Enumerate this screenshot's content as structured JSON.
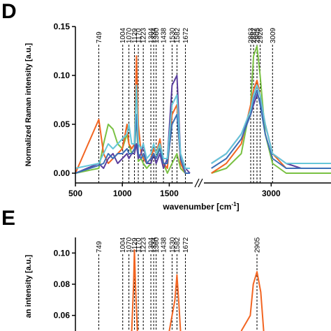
{
  "chart_data": [
    {
      "type": "line",
      "panel": "D",
      "ylabel": "Normalized Raman intensity [a.u.]",
      "xlabel": "wavenumber [cm",
      "xlabel_sup": "-1",
      "xlabel_close": "]",
      "ylim": [
        -0.01,
        0.15
      ],
      "yticks": [
        "0.00",
        "0.05",
        "0.10",
        "0.15"
      ],
      "ytick_values": [
        0.0,
        0.05,
        0.1,
        0.15
      ],
      "xaxis_broken": true,
      "xlim_left": [
        500,
        1750
      ],
      "xlim_right": [
        2550,
        3400
      ],
      "xticks": [
        "500",
        "1000",
        "1500",
        "3000"
      ],
      "xtick_values": [
        500,
        1000,
        1500,
        3000
      ],
      "peak_labels": [
        "749",
        "1004",
        "1070",
        "1129",
        "1170",
        "1223",
        "1304",
        "1334",
        "1360",
        "1438",
        "1530",
        "1582",
        "1672",
        "2863",
        "2882",
        "2905",
        "2926",
        "3009"
      ],
      "peak_positions": [
        749,
        1004,
        1070,
        1129,
        1170,
        1223,
        1304,
        1334,
        1360,
        1438,
        1530,
        1582,
        1672,
        2863,
        2882,
        2905,
        2926,
        3009
      ],
      "series_colors": [
        "#7ac143",
        "#f26522",
        "#5b3f9e",
        "#3c6fb6",
        "#66c7d9"
      ],
      "series": [
        {
          "color": "#7ac143",
          "x": [
            500,
            749,
            800,
            850,
            900,
            950,
            1000,
            1050,
            1070,
            1100,
            1129,
            1150,
            1170,
            1200,
            1223,
            1260,
            1304,
            1334,
            1360,
            1400,
            1438,
            1480,
            1530,
            1582,
            1620,
            1672,
            1720,
            2600,
            2700,
            2800,
            2863,
            2882,
            2905,
            2926,
            2960,
            3009,
            3100,
            3200,
            3300,
            3400
          ],
          "y": [
            0.0,
            0.005,
            0.03,
            0.05,
            0.045,
            0.03,
            0.025,
            0.04,
            0.03,
            0.02,
            0.02,
            0.06,
            0.012,
            0.015,
            0.01,
            0.005,
            0.01,
            0.02,
            0.015,
            0.03,
            0.01,
            0.0,
            0.01,
            0.02,
            0.005,
            0.0,
            0.0,
            0.0,
            0.005,
            0.02,
            0.07,
            0.12,
            0.13,
            0.1,
            0.04,
            0.01,
            0.0,
            0.0,
            0.0,
            0.0
          ]
        },
        {
          "color": "#f26522",
          "x": [
            500,
            749,
            800,
            850,
            900,
            950,
            1000,
            1050,
            1070,
            1100,
            1129,
            1150,
            1170,
            1200,
            1223,
            1260,
            1304,
            1334,
            1360,
            1400,
            1438,
            1480,
            1530,
            1582,
            1620,
            1672,
            1720,
            2600,
            2700,
            2800,
            2863,
            2882,
            2905,
            2926,
            2960,
            3009,
            3100,
            3200,
            3300,
            3400
          ],
          "y": [
            0.0,
            0.055,
            0.02,
            0.01,
            0.015,
            0.02,
            0.025,
            0.05,
            0.03,
            0.025,
            0.03,
            0.12,
            0.05,
            0.02,
            0.015,
            0.01,
            0.015,
            0.025,
            0.02,
            0.035,
            0.01,
            0.005,
            0.06,
            0.07,
            0.01,
            0.0,
            0.0,
            0.0,
            0.01,
            0.03,
            0.07,
            0.085,
            0.095,
            0.08,
            0.05,
            0.02,
            0.005,
            0.005,
            0.005,
            0.005
          ]
        },
        {
          "color": "#5b3f9e",
          "x": [
            500,
            749,
            800,
            850,
            900,
            950,
            1000,
            1050,
            1070,
            1100,
            1129,
            1150,
            1170,
            1200,
            1223,
            1260,
            1304,
            1334,
            1360,
            1400,
            1438,
            1480,
            1530,
            1582,
            1620,
            1672,
            1720,
            2600,
            2700,
            2800,
            2863,
            2882,
            2905,
            2926,
            2960,
            3009,
            3100,
            3200,
            3300,
            3400
          ],
          "y": [
            0.0,
            0.01,
            0.005,
            0.015,
            0.02,
            0.01,
            0.015,
            0.02,
            0.015,
            0.02,
            0.02,
            0.03,
            0.015,
            0.02,
            0.03,
            0.01,
            0.01,
            0.02,
            0.01,
            0.02,
            0.005,
            0.015,
            0.09,
            0.1,
            0.02,
            0.005,
            0.0,
            0.01,
            0.02,
            0.04,
            0.06,
            0.07,
            0.08,
            0.075,
            0.05,
            0.02,
            0.01,
            0.005,
            0.005,
            0.005
          ]
        },
        {
          "color": "#3c6fb6",
          "x": [
            500,
            749,
            800,
            850,
            900,
            950,
            1000,
            1050,
            1070,
            1100,
            1129,
            1150,
            1170,
            1200,
            1223,
            1260,
            1304,
            1334,
            1360,
            1400,
            1438,
            1480,
            1530,
            1582,
            1620,
            1672,
            1720,
            2600,
            2700,
            2800,
            2863,
            2882,
            2905,
            2926,
            2960,
            3009,
            3100,
            3200,
            3300,
            3400
          ],
          "y": [
            0.0,
            0.008,
            0.01,
            0.02,
            0.015,
            0.02,
            0.02,
            0.025,
            0.02,
            0.02,
            0.025,
            0.06,
            0.02,
            0.015,
            0.02,
            0.01,
            0.015,
            0.02,
            0.015,
            0.025,
            0.01,
            0.01,
            0.05,
            0.06,
            0.015,
            0.0,
            0.0,
            0.005,
            0.015,
            0.035,
            0.06,
            0.075,
            0.085,
            0.07,
            0.04,
            0.015,
            0.005,
            0.005,
            0.005,
            0.005
          ]
        },
        {
          "color": "#66c7d9",
          "x": [
            500,
            749,
            800,
            850,
            900,
            950,
            1000,
            1050,
            1070,
            1100,
            1129,
            1150,
            1170,
            1200,
            1223,
            1260,
            1304,
            1334,
            1360,
            1400,
            1438,
            1480,
            1530,
            1582,
            1620,
            1672,
            1720,
            2600,
            2700,
            2800,
            2863,
            2882,
            2905,
            2926,
            2960,
            3009,
            3100,
            3200,
            3300,
            3400
          ],
          "y": [
            0.005,
            0.01,
            0.02,
            0.03,
            0.025,
            0.03,
            0.035,
            0.04,
            0.05,
            0.03,
            0.03,
            0.09,
            0.03,
            0.025,
            0.03,
            0.015,
            0.02,
            0.03,
            0.02,
            0.03,
            0.015,
            0.015,
            0.07,
            0.08,
            0.02,
            0.005,
            0.005,
            0.01,
            0.02,
            0.04,
            0.065,
            0.08,
            0.09,
            0.08,
            0.05,
            0.02,
            0.01,
            0.01,
            0.01,
            0.01
          ]
        }
      ]
    },
    {
      "type": "line",
      "panel": "E",
      "ylabel": "an intensity [a.u.]",
      "ylim": [
        0.05,
        0.11
      ],
      "yticks": [
        "0.06",
        "0.08",
        "0.10"
      ],
      "ytick_values": [
        0.06,
        0.08,
        0.1
      ],
      "peak_labels": [
        "749",
        "1004",
        "1070",
        "1129",
        "1170",
        "1223",
        "1304",
        "1334",
        "1360",
        "1438",
        "1530",
        "1582",
        "1672",
        "2905"
      ],
      "peak_positions": [
        749,
        1004,
        1070,
        1129,
        1170,
        1223,
        1304,
        1334,
        1360,
        1438,
        1530,
        1582,
        1672,
        2905
      ],
      "series_colors": [
        "#f26522"
      ],
      "series": [
        {
          "color": "#f26522",
          "x": [
            1100,
            1120,
            1129,
            1140,
            1160,
            1500,
            1560,
            1582,
            1600,
            1620,
            2800,
            2860,
            2880,
            2905,
            2930,
            2950
          ],
          "y": [
            0.04,
            0.08,
            0.102,
            0.08,
            0.04,
            0.04,
            0.07,
            0.086,
            0.07,
            0.04,
            0.04,
            0.06,
            0.08,
            0.088,
            0.075,
            0.04
          ]
        }
      ]
    }
  ]
}
